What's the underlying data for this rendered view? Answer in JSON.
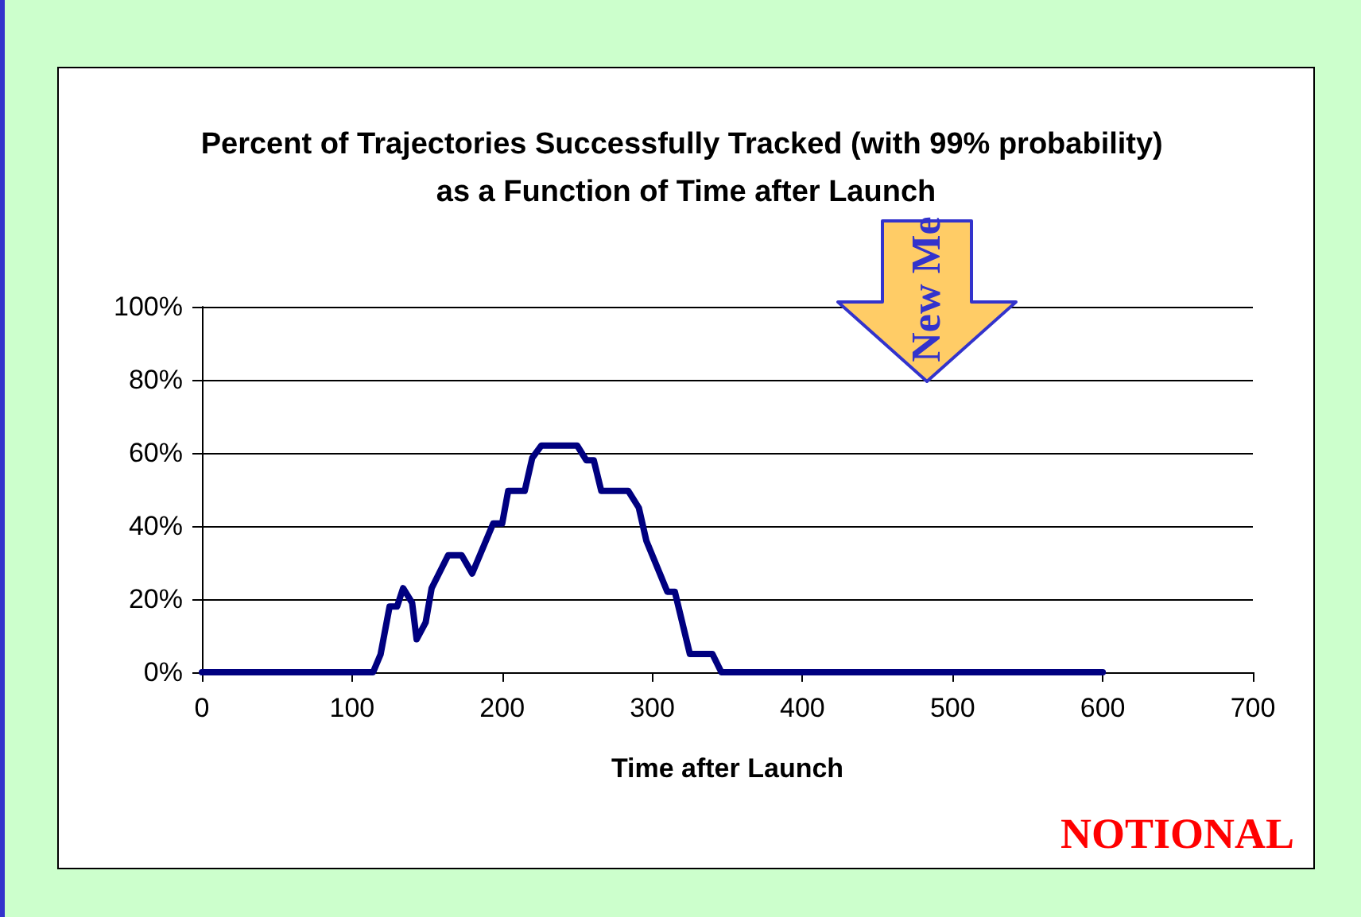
{
  "chart_data": {
    "type": "line",
    "title": "Percent of Trajectories Successfully Tracked (with 99% probability) as a Function of Time after Launch",
    "xlabel": "Time after Launch",
    "annotations": [
      "NOTIONAL",
      "New Me"
    ],
    "x": [
      0,
      114,
      119,
      125,
      130,
      134,
      140,
      143,
      149,
      153,
      164,
      173,
      180,
      194,
      200,
      204,
      215,
      220,
      226,
      250,
      256,
      261,
      266,
      284,
      291,
      296,
      305,
      310,
      315,
      325,
      340,
      346,
      600
    ],
    "series": [
      {
        "color": "#000080",
        "values": [
          0,
          0,
          4.9,
          18,
          18,
          23,
          19,
          9,
          13.6,
          23,
          32,
          32,
          27,
          40.7,
          40.7,
          49.6,
          49.6,
          58.6,
          62,
          62,
          58,
          58,
          49.6,
          49.6,
          45,
          36,
          27,
          22,
          22,
          5,
          5,
          0,
          0
        ]
      }
    ],
    "xlim": [
      0,
      700
    ],
    "xticks": [
      0,
      100,
      200,
      300,
      400,
      500,
      600,
      700
    ],
    "ylim": [
      0,
      100
    ],
    "yticks": [
      {
        "value": 0,
        "label": "0%"
      },
      {
        "value": 20,
        "label": "20%"
      },
      {
        "value": 40,
        "label": "40%"
      },
      {
        "value": 60,
        "label": "60%"
      },
      {
        "value": 80,
        "label": "80%"
      },
      {
        "value": 100,
        "label": "100%"
      }
    ],
    "grid": "y",
    "marker": "none",
    "line_style": "solid"
  }
}
